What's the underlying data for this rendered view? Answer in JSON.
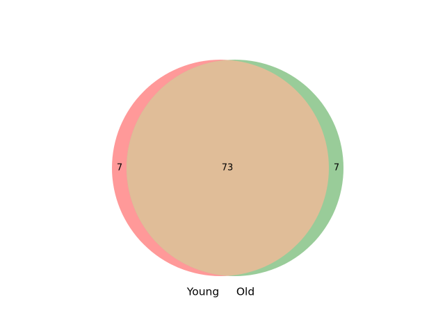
{
  "diagram": {
    "type": "venn2",
    "sets": [
      {
        "name": "Young",
        "color": "#ff9999"
      },
      {
        "name": "Old",
        "color": "#99cc99"
      }
    ],
    "regions": {
      "young_only": "7",
      "intersection": "73",
      "old_only": "7"
    },
    "intersection_color": "#e0bd98"
  }
}
